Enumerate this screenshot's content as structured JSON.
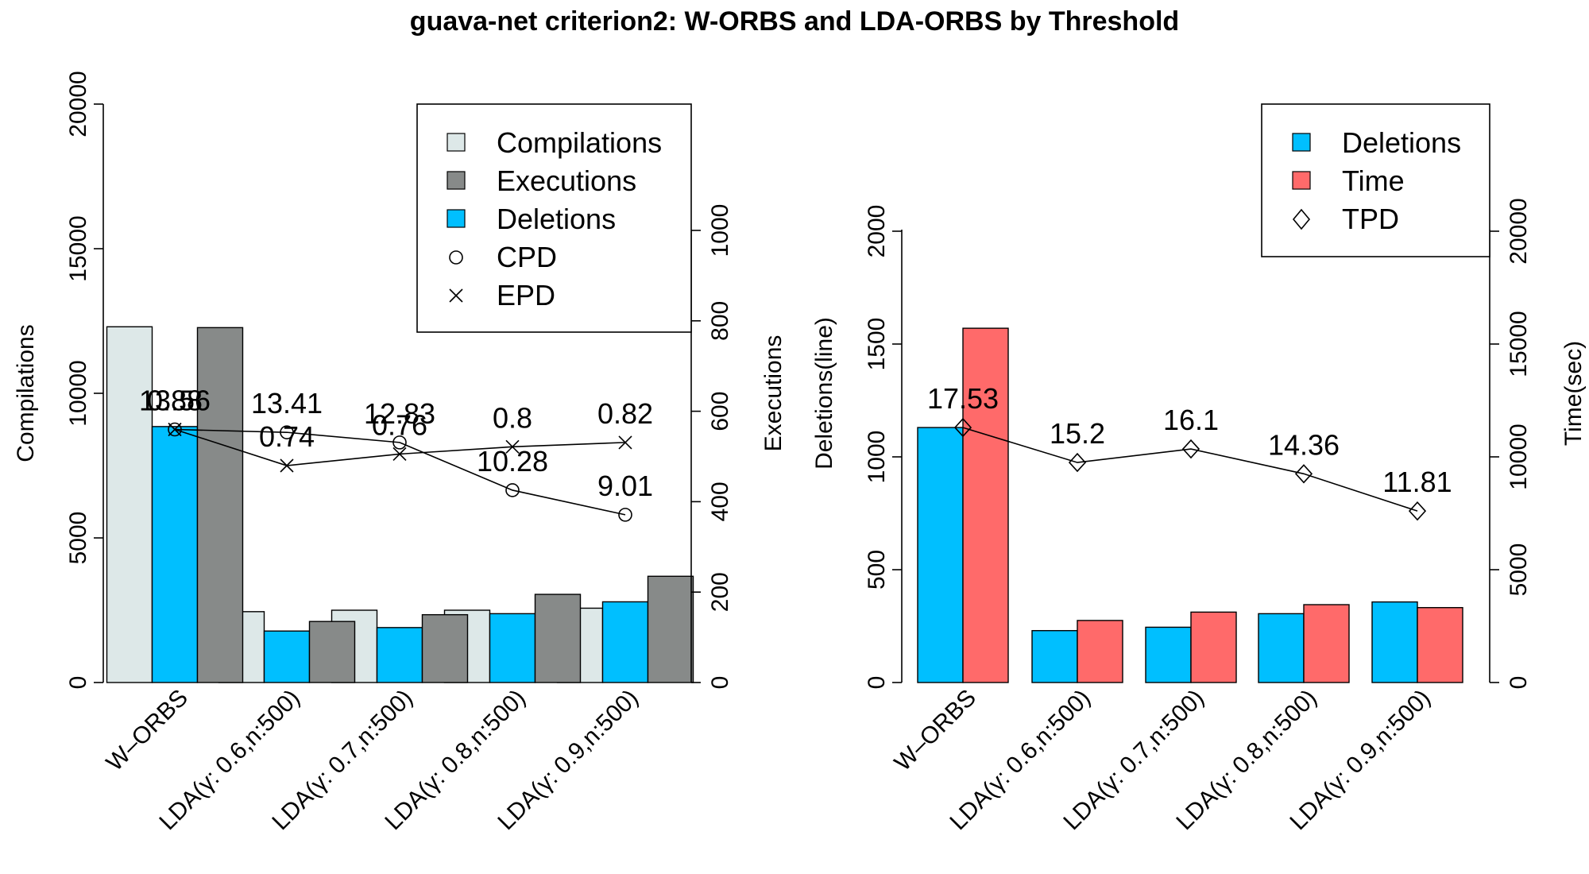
{
  "chart_data": [
    {
      "type": "bar",
      "title": "guava-net criterion2: W-ORBS and LDA-ORBS by Threshold",
      "categories": [
        "W–ORBS",
        "LDA(γ: 0.6,n:500)",
        "LDA(γ: 0.7,n:500)",
        "LDA(γ: 0.8,n:500)",
        "LDA(γ: 0.9,n:500)"
      ],
      "ylabel": "Compilations",
      "ylim": [
        0,
        20000
      ],
      "yticks": [
        "0",
        "5000",
        "10000",
        "15000",
        "20000"
      ],
      "y2label": "Executions",
      "y2lim": [
        0,
        1000
      ],
      "y2ticks": [
        "0",
        "200",
        "400",
        "600",
        "800",
        "1000"
      ],
      "series": [
        {
          "name": "Compilations",
          "axis": "left",
          "color": "#dde8e8",
          "values": [
            12300,
            2450,
            2500,
            2500,
            2570
          ]
        },
        {
          "name": "Deletions",
          "axis": "left",
          "color": "#00bfff",
          "values": [
            8850,
            1780,
            1900,
            2380,
            2790
          ]
        },
        {
          "name": "Executions",
          "axis": "right",
          "color": "#878a89",
          "values": [
            785,
            135,
            150,
            195,
            235
          ]
        }
      ],
      "lines": [
        {
          "name": "CPD",
          "marker": "circle",
          "values": [
            13.56,
            13.41,
            12.83,
            10.28,
            9.01
          ],
          "labels": [
            "13.56",
            "13.41",
            "12.83",
            "10.28",
            "9.01"
          ],
          "plot_left": [
            8750,
            8650,
            8300,
            6650,
            5800
          ]
        },
        {
          "name": "EPD",
          "marker": "x",
          "values": [
            0.88,
            0.74,
            0.76,
            0.8,
            0.82
          ],
          "labels": [
            "0.88",
            "0.74",
            "0.76",
            "0.8",
            "0.82"
          ],
          "plot_left": [
            8750,
            7500,
            7900,
            8150,
            8300
          ]
        }
      ],
      "legend": {
        "position": "top-right",
        "entries": [
          "Compilations",
          "Executions",
          "Deletions",
          "CPD",
          "EPD"
        ]
      }
    },
    {
      "type": "bar",
      "categories": [
        "W–ORBS",
        "LDA(γ: 0.6,n:500)",
        "LDA(γ: 0.7,n:500)",
        "LDA(γ: 0.8,n:500)",
        "LDA(γ: 0.9,n:500)"
      ],
      "ylabel": "Deletions(line)",
      "ylim": [
        0,
        2000
      ],
      "yticks": [
        "0",
        "500",
        "1000",
        "1500",
        "2000"
      ],
      "y2label": "Time(sec)",
      "y2lim": [
        0,
        20000
      ],
      "y2ticks": [
        "0",
        "5000",
        "10000",
        "15000",
        "20000"
      ],
      "series": [
        {
          "name": "Deletions",
          "axis": "left",
          "color": "#00bfff",
          "values": [
            1130,
            230,
            245,
            305,
            357
          ]
        },
        {
          "name": "Time",
          "axis": "right",
          "color": "#ff6a6a",
          "values": [
            15700,
            2750,
            3120,
            3450,
            3320
          ]
        }
      ],
      "lines": [
        {
          "name": "TPD",
          "marker": "diamond",
          "values": [
            17.53,
            15.2,
            16.1,
            14.36,
            11.81
          ],
          "labels": [
            "17.53",
            "15.2",
            "16.1",
            "14.36",
            "11.81"
          ],
          "plot_left": [
            1130,
            975,
            1035,
            925,
            760
          ]
        }
      ],
      "legend": {
        "position": "top-right",
        "entries": [
          "Deletions",
          "Time",
          "TPD"
        ]
      }
    }
  ]
}
